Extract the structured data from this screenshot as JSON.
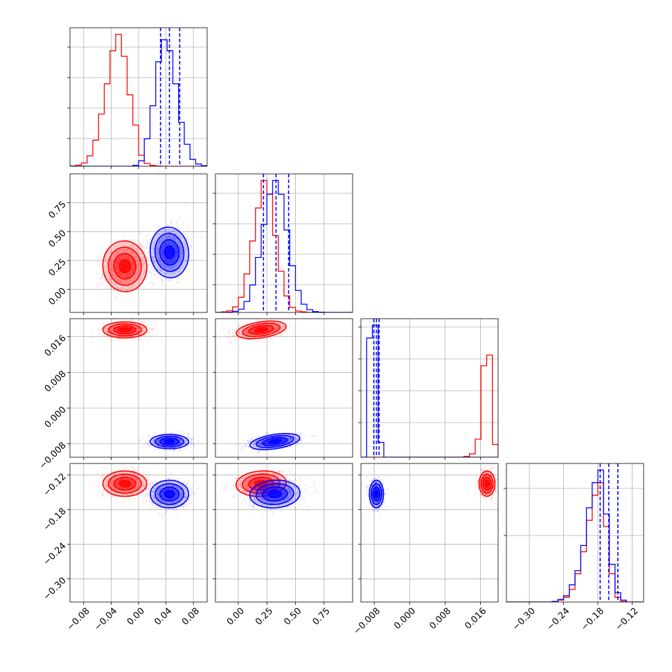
{
  "chart_data": {
    "type": "corner",
    "grid": true,
    "colors": {
      "series_a": "#ff0000",
      "series_b": "#0000ff",
      "quantile_lines": "#0000ff"
    },
    "parameters": [
      {
        "range": [
          -0.1,
          0.1
        ],
        "ticks": [
          -0.08,
          -0.04,
          0.0,
          0.04,
          0.08
        ],
        "tick_labels": [
          "−0.08",
          "−0.04",
          "0.00",
          "0.04",
          "0.08"
        ]
      },
      {
        "range": [
          -0.2,
          1.0
        ],
        "ticks": [
          0.0,
          0.25,
          0.5,
          0.75
        ],
        "tick_labels": [
          "0.00",
          "0.25",
          "0.50",
          "0.75"
        ]
      },
      {
        "range": [
          -0.011,
          0.02
        ],
        "ticks": [
          -0.008,
          0.0,
          0.008,
          0.016
        ],
        "tick_labels": [
          "−0.008",
          "0.000",
          "0.008",
          "0.016"
        ]
      },
      {
        "range": [
          -0.34,
          -0.1
        ],
        "ticks": [
          -0.3,
          -0.24,
          -0.18,
          -0.12
        ],
        "tick_labels": [
          "−0.30",
          "−0.24",
          "−0.18",
          "−0.12"
        ]
      }
    ],
    "series": [
      {
        "color": "#ff0000",
        "means": [
          -0.02,
          0.2,
          0.0175,
          -0.135
        ],
        "sds": [
          0.016,
          0.11,
          0.0009,
          0.011
        ]
      },
      {
        "color": "#0000ff",
        "means": [
          0.045,
          0.32,
          -0.0075,
          -0.153
        ],
        "sds": [
          0.014,
          0.11,
          0.0008,
          0.012
        ]
      }
    ],
    "quantiles": [
      [
        0.032,
        0.045,
        0.06
      ],
      [
        0.22,
        0.33,
        0.44
      ],
      [
        -0.0081,
        -0.0075,
        -0.0069
      ],
      [
        -0.176,
        -0.161,
        -0.145
      ]
    ],
    "histograms": [
      {
        "bins": [
          -0.1,
          0.1,
          24
        ],
        "counts": [
          [
            1,
            4,
            12,
            38,
            95,
            190,
            300,
            420,
            480,
            400,
            260,
            150,
            40,
            10,
            3,
            1,
            0,
            0,
            0,
            0,
            0,
            0,
            0,
            0
          ],
          [
            0,
            0,
            0,
            0,
            0,
            0,
            0,
            0,
            0,
            0,
            0,
            3,
            20,
            100,
            220,
            380,
            460,
            420,
            300,
            160,
            80,
            25,
            8,
            2
          ]
        ]
      },
      {
        "bins": [
          -0.2,
          1.0,
          24
        ],
        "counts": [
          [
            0,
            2,
            6,
            20,
            55,
            140,
            260,
            380,
            480,
            430,
            280,
            150,
            60,
            18,
            5,
            2,
            0,
            0,
            0,
            0,
            0,
            0,
            0,
            0
          ],
          [
            0,
            0,
            1,
            4,
            12,
            40,
            100,
            200,
            320,
            430,
            480,
            430,
            300,
            170,
            80,
            30,
            10,
            3,
            1,
            0,
            0,
            0,
            0,
            0
          ]
        ]
      },
      {
        "bins": [
          -0.011,
          0.02,
          24
        ],
        "counts": [
          [
            0,
            0,
            0,
            0,
            0,
            0,
            0,
            0,
            0,
            0,
            0,
            0,
            0,
            0,
            0,
            0,
            0,
            0,
            4,
            16,
            85,
            430,
            480,
            60
          ],
          [
            0,
            560,
            620,
            70,
            0,
            0,
            0,
            0,
            0,
            0,
            0,
            0,
            0,
            0,
            0,
            0,
            0,
            0,
            0,
            0,
            0,
            0,
            0,
            0
          ]
        ]
      },
      {
        "bins": [
          -0.34,
          -0.1,
          24
        ],
        "counts": [
          [
            0,
            0,
            0,
            0,
            0,
            0,
            0,
            0,
            2,
            6,
            15,
            40,
            90,
            160,
            260,
            340,
            380,
            240,
            90,
            15,
            2,
            0,
            0,
            0
          ],
          [
            0,
            0,
            0,
            0,
            0,
            0,
            0,
            0,
            2,
            8,
            20,
            55,
            100,
            180,
            300,
            380,
            420,
            280,
            120,
            30,
            6,
            0,
            0,
            0
          ]
        ]
      }
    ]
  }
}
